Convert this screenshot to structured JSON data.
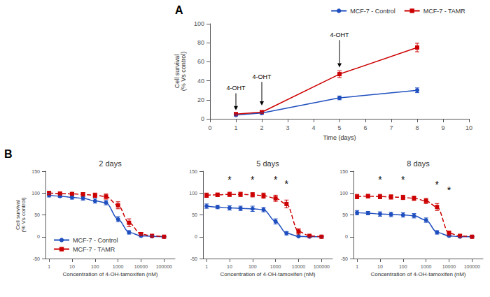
{
  "chart_data": [
    {
      "type": "line",
      "annotations": [
        {
          "text": "A"
        },
        {
          "text": "4-OHT",
          "x": 1,
          "y": 32,
          "arrow_y": 9
        },
        {
          "text": "4-OHT",
          "x": 2,
          "y": 44,
          "arrow_y": 14
        },
        {
          "text": "4-OHT",
          "x": 5,
          "y": 88,
          "arrow_y": 54
        }
      ],
      "xlabel": "Time (days)",
      "ylabel": "Cell survival\n(% Vs control)",
      "xlim": [
        0,
        10
      ],
      "xticks": [
        0,
        1,
        2,
        3,
        4,
        5,
        6,
        7,
        8,
        9,
        10
      ],
      "ylim": [
        0,
        100
      ],
      "yticks": [
        0,
        20,
        40,
        60,
        80,
        100
      ],
      "grid": false,
      "legend": "upper right",
      "series": [
        {
          "name": "MCF-7 - Control",
          "color": "#1F4FBF",
          "marker": "circle",
          "line_style": "solid",
          "x": [
            1,
            2,
            5,
            8
          ],
          "values": [
            4,
            6,
            22,
            30
          ],
          "errors": [
            1.0,
            1.0,
            2.0,
            2.5
          ]
        },
        {
          "name": "MCF-7 - TAMR",
          "color": "#CC0000",
          "marker": "square",
          "line_style": "solid",
          "x": [
            1,
            2,
            5,
            8
          ],
          "values": [
            5,
            7,
            47,
            75
          ],
          "errors": [
            1.0,
            1.0,
            3.5,
            4.5
          ]
        }
      ]
    },
    {
      "type": "line",
      "title": "2 days",
      "annotations": [
        {
          "text": "B"
        }
      ],
      "xlabel": "Concentration of 4-OH-tamoxifen (nM)",
      "ylabel": "Cell survival\n(% Vs control)",
      "log": "x",
      "xlim": [
        0.7,
        300000
      ],
      "xticks": [
        1,
        10,
        100,
        1000,
        10000,
        100000
      ],
      "ylim": [
        -50,
        150
      ],
      "yticks": [
        -50,
        0,
        50,
        100,
        150
      ],
      "grid": false,
      "legend": "lower left",
      "series": [
        {
          "name": "MCF-7 - Control",
          "color": "#1F4FBF",
          "marker": "circle",
          "line_style": "solid",
          "x": [
            1,
            3,
            10,
            30,
            100,
            300,
            1000,
            3000,
            10000,
            30000,
            100000
          ],
          "values": [
            95,
            93,
            90,
            88,
            82,
            78,
            40,
            10,
            2,
            1,
            0
          ],
          "errors": [
            4,
            3,
            4,
            4,
            5,
            5,
            6,
            4,
            2,
            1,
            0.5
          ]
        },
        {
          "name": "MCF-7 - TAMR",
          "color": "#CC0000",
          "marker": "square",
          "line_style": "dashed",
          "x": [
            1,
            3,
            10,
            30,
            100,
            300,
            1000,
            3000,
            10000,
            30000,
            100000
          ],
          "values": [
            100,
            99,
            98,
            97,
            95,
            92,
            72,
            32,
            6,
            2,
            0
          ],
          "errors": [
            4,
            3,
            3,
            4,
            5,
            6,
            8,
            9,
            4,
            2,
            0.5
          ]
        }
      ]
    },
    {
      "type": "line",
      "title": "5 days",
      "annotations": [
        {
          "text": "*",
          "x": 10,
          "y": 120
        },
        {
          "text": "*",
          "x": 100,
          "y": 120
        },
        {
          "text": "*",
          "x": 1000,
          "y": 120
        },
        {
          "text": "*",
          "x": 3000,
          "y": 110
        }
      ],
      "xlabel": "Concentration of 4-OH-tamoxifen (nM)",
      "log": "x",
      "xlim": [
        0.7,
        300000
      ],
      "xticks": [
        1,
        10,
        100,
        1000,
        10000,
        100000
      ],
      "ylim": [
        -50,
        150
      ],
      "yticks": [
        -50,
        0,
        50,
        100,
        150
      ],
      "grid": false,
      "series": [
        {
          "name": "MCF-7 - Control",
          "color": "#1F4FBF",
          "marker": "circle",
          "line_style": "solid",
          "x": [
            1,
            3,
            10,
            30,
            100,
            300,
            1000,
            3000,
            10000,
            30000,
            100000
          ],
          "values": [
            70,
            68,
            66,
            65,
            64,
            62,
            35,
            8,
            1,
            0,
            0
          ],
          "errors": [
            5,
            4,
            5,
            5,
            6,
            5,
            6,
            4,
            1,
            0.5,
            0.5
          ]
        },
        {
          "name": "MCF-7 - TAMR",
          "color": "#CC0000",
          "marker": "square",
          "line_style": "dashed",
          "x": [
            1,
            3,
            10,
            30,
            100,
            300,
            1000,
            3000,
            10000,
            30000,
            100000
          ],
          "values": [
            95,
            96,
            97,
            97,
            96,
            94,
            88,
            75,
            12,
            2,
            0
          ],
          "errors": [
            5,
            4,
            5,
            5,
            5,
            6,
            7,
            9,
            6,
            2,
            0.5
          ]
        }
      ]
    },
    {
      "type": "line",
      "title": "8 days",
      "annotations": [
        {
          "text": "*",
          "x": 10,
          "y": 120
        },
        {
          "text": "*",
          "x": 100,
          "y": 120
        },
        {
          "text": "*",
          "x": 3000,
          "y": 108
        },
        {
          "text": "*",
          "x": 10000,
          "y": 95
        }
      ],
      "xlabel": "Concentration of 4-OH-tamoxifen (nM)",
      "log": "x",
      "xlim": [
        0.7,
        300000
      ],
      "xticks": [
        1,
        10,
        100,
        1000,
        10000,
        100000
      ],
      "ylim": [
        -50,
        150
      ],
      "yticks": [
        -50,
        0,
        50,
        100,
        150
      ],
      "grid": false,
      "series": [
        {
          "name": "MCF-7 - Control",
          "color": "#1F4FBF",
          "marker": "circle",
          "line_style": "solid",
          "x": [
            1,
            3,
            10,
            30,
            100,
            300,
            1000,
            3000,
            10000,
            30000,
            100000
          ],
          "values": [
            55,
            54,
            52,
            51,
            50,
            48,
            38,
            10,
            2,
            0,
            0
          ],
          "errors": [
            5,
            4,
            5,
            5,
            5,
            5,
            5,
            4,
            2,
            0.5,
            0.5
          ]
        },
        {
          "name": "MCF-7 - TAMR",
          "color": "#CC0000",
          "marker": "square",
          "line_style": "dashed",
          "x": [
            1,
            3,
            10,
            30,
            100,
            300,
            1000,
            3000,
            10000,
            30000,
            100000
          ],
          "values": [
            92,
            93,
            92,
            91,
            90,
            88,
            82,
            68,
            8,
            2,
            0
          ],
          "errors": [
            5,
            4,
            5,
            5,
            5,
            5,
            6,
            8,
            5,
            2,
            0.5
          ]
        }
      ]
    }
  ]
}
